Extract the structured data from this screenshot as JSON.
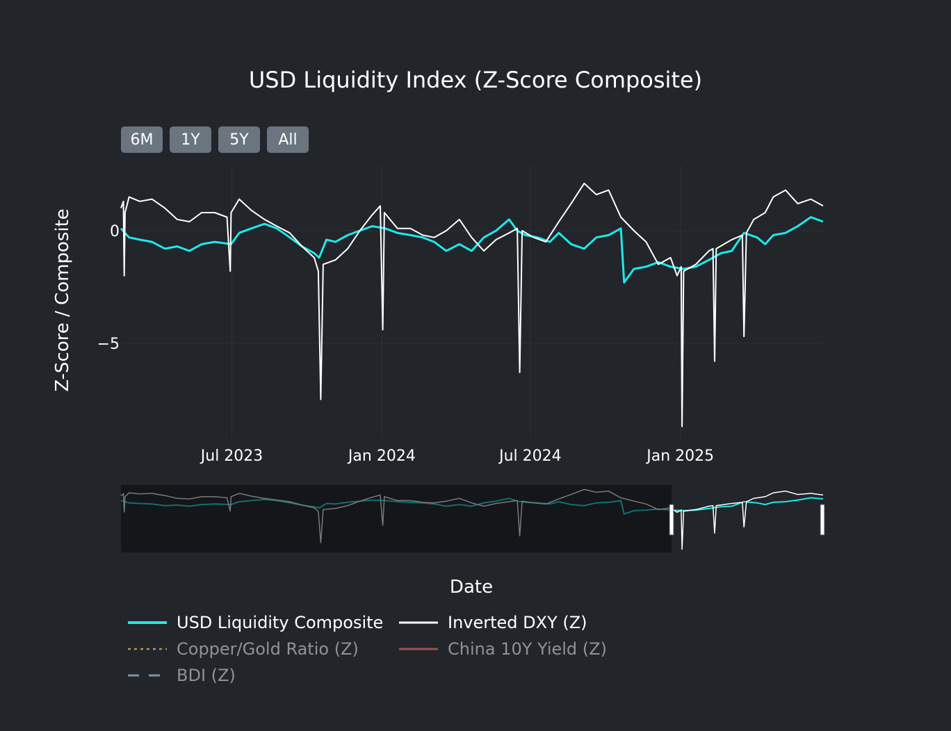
{
  "title": "USD Liquidity Index (Z-Score Composite)",
  "range_buttons": [
    "6M",
    "1Y",
    "5Y",
    "All"
  ],
  "yaxis": {
    "label": "Z-Score / Composite",
    "ticks": [
      0,
      -5
    ],
    "tick_labels": [
      "0",
      "−5"
    ]
  },
  "xaxis": {
    "label": "Date",
    "tick_labels": [
      "Jul 2023",
      "Jan 2024",
      "Jul 2024",
      "Jan 2025"
    ]
  },
  "legend": [
    {
      "name": "USD Liquidity Composite",
      "color": "#1de9ec",
      "dash": "solid",
      "active": true
    },
    {
      "name": "Inverted DXY (Z)",
      "color": "#ffffff",
      "dash": "solid",
      "active": true
    },
    {
      "name": "Copper/Gold Ratio (Z)",
      "color": "#b39c4d",
      "dash": "dot",
      "active": false
    },
    {
      "name": "China 10Y Yield (Z)",
      "color": "#a84e4e",
      "dash": "solid",
      "active": false
    },
    {
      "name": "BDI (Z)",
      "color": "#7f93a8",
      "dash": "dash",
      "active": false
    }
  ],
  "chart_data": {
    "type": "line",
    "title": "USD Liquidity Index (Z-Score Composite)",
    "xlabel": "Date",
    "ylabel": "Z-Score / Composite",
    "x_range": [
      "2023-02-15",
      "2025-06-25"
    ],
    "ylim": [
      -9.2,
      2.9
    ],
    "grid": true,
    "legend_position": "bottom",
    "series": [
      {
        "name": "USD Liquidity Composite",
        "color": "#1de9ec",
        "points": [
          [
            "2023-02-15",
            0.1
          ],
          [
            "2023-02-25",
            -0.3
          ],
          [
            "2023-03-10",
            -0.4
          ],
          [
            "2023-03-25",
            -0.5
          ],
          [
            "2023-04-10",
            -0.8
          ],
          [
            "2023-04-25",
            -0.7
          ],
          [
            "2023-05-10",
            -0.9
          ],
          [
            "2023-05-25",
            -0.6
          ],
          [
            "2023-06-10",
            -0.5
          ],
          [
            "2023-06-30",
            -0.6
          ],
          [
            "2023-07-10",
            -0.1
          ],
          [
            "2023-07-25",
            0.1
          ],
          [
            "2023-08-10",
            0.3
          ],
          [
            "2023-08-25",
            0.1
          ],
          [
            "2023-09-10",
            -0.3
          ],
          [
            "2023-09-25",
            -0.7
          ],
          [
            "2023-10-10",
            -1.0
          ],
          [
            "2023-10-16",
            -1.2
          ],
          [
            "2023-10-25",
            -0.4
          ],
          [
            "2023-11-05",
            -0.5
          ],
          [
            "2023-11-20",
            -0.2
          ],
          [
            "2023-12-05",
            0.0
          ],
          [
            "2023-12-20",
            0.2
          ],
          [
            "2024-01-05",
            0.1
          ],
          [
            "2024-01-20",
            -0.1
          ],
          [
            "2024-02-05",
            -0.2
          ],
          [
            "2024-02-20",
            -0.3
          ],
          [
            "2024-03-05",
            -0.5
          ],
          [
            "2024-03-20",
            -0.9
          ],
          [
            "2024-04-05",
            -0.6
          ],
          [
            "2024-04-20",
            -0.9
          ],
          [
            "2024-05-05",
            -0.3
          ],
          [
            "2024-05-20",
            0.0
          ],
          [
            "2024-06-05",
            0.5
          ],
          [
            "2024-06-15",
            0.0
          ],
          [
            "2024-06-25",
            -0.2
          ],
          [
            "2024-07-10",
            -0.3
          ],
          [
            "2024-07-25",
            -0.5
          ],
          [
            "2024-08-05",
            -0.1
          ],
          [
            "2024-08-20",
            -0.6
          ],
          [
            "2024-09-05",
            -0.8
          ],
          [
            "2024-09-20",
            -0.3
          ],
          [
            "2024-10-05",
            -0.2
          ],
          [
            "2024-10-20",
            0.1
          ],
          [
            "2024-10-24",
            -2.3
          ],
          [
            "2024-11-05",
            -1.7
          ],
          [
            "2024-11-20",
            -1.6
          ],
          [
            "2024-12-05",
            -1.4
          ],
          [
            "2024-12-20",
            -1.6
          ],
          [
            "2025-01-05",
            -1.7
          ],
          [
            "2025-01-20",
            -1.6
          ],
          [
            "2025-02-05",
            -1.3
          ],
          [
            "2025-02-20",
            -1.0
          ],
          [
            "2025-03-05",
            -0.9
          ],
          [
            "2025-03-20",
            -0.1
          ],
          [
            "2025-04-05",
            -0.3
          ],
          [
            "2025-04-15",
            -0.6
          ],
          [
            "2025-04-25",
            -0.2
          ],
          [
            "2025-05-10",
            -0.1
          ],
          [
            "2025-05-25",
            0.2
          ],
          [
            "2025-06-10",
            0.6
          ],
          [
            "2025-06-25",
            0.4
          ]
        ]
      },
      {
        "name": "Inverted DXY (Z)",
        "color": "#ffffff",
        "points": [
          [
            "2023-02-15",
            1.0
          ],
          [
            "2023-02-18",
            1.3
          ],
          [
            "2023-02-19",
            -2.0
          ],
          [
            "2023-02-20",
            0.8
          ],
          [
            "2023-02-25",
            1.5
          ],
          [
            "2023-03-10",
            1.3
          ],
          [
            "2023-03-25",
            1.4
          ],
          [
            "2023-04-10",
            1.0
          ],
          [
            "2023-04-25",
            0.5
          ],
          [
            "2023-05-10",
            0.4
          ],
          [
            "2023-05-25",
            0.8
          ],
          [
            "2023-06-10",
            0.8
          ],
          [
            "2023-06-25",
            0.6
          ],
          [
            "2023-06-29",
            -1.8
          ],
          [
            "2023-06-30",
            0.8
          ],
          [
            "2023-07-10",
            1.4
          ],
          [
            "2023-07-25",
            0.9
          ],
          [
            "2023-08-10",
            0.5
          ],
          [
            "2023-08-25",
            0.2
          ],
          [
            "2023-09-10",
            -0.1
          ],
          [
            "2023-09-25",
            -0.7
          ],
          [
            "2023-10-10",
            -1.2
          ],
          [
            "2023-10-15",
            -1.8
          ],
          [
            "2023-10-18",
            -7.5
          ],
          [
            "2023-10-21",
            -1.5
          ],
          [
            "2023-11-05",
            -1.3
          ],
          [
            "2023-11-20",
            -0.8
          ],
          [
            "2023-12-05",
            0.0
          ],
          [
            "2023-12-20",
            0.7
          ],
          [
            "2023-12-30",
            1.1
          ],
          [
            "2024-01-02",
            -4.4
          ],
          [
            "2024-01-04",
            0.8
          ],
          [
            "2024-01-20",
            0.1
          ],
          [
            "2024-02-05",
            0.1
          ],
          [
            "2024-02-20",
            -0.2
          ],
          [
            "2024-03-05",
            -0.3
          ],
          [
            "2024-03-20",
            0.0
          ],
          [
            "2024-04-05",
            0.5
          ],
          [
            "2024-04-20",
            -0.3
          ],
          [
            "2024-05-05",
            -0.9
          ],
          [
            "2024-05-20",
            -0.4
          ],
          [
            "2024-06-05",
            -0.1
          ],
          [
            "2024-06-15",
            0.1
          ],
          [
            "2024-06-18",
            -6.3
          ],
          [
            "2024-06-21",
            0.0
          ],
          [
            "2024-07-05",
            -0.3
          ],
          [
            "2024-07-20",
            -0.5
          ],
          [
            "2024-08-05",
            0.4
          ],
          [
            "2024-08-20",
            1.2
          ],
          [
            "2024-09-05",
            2.1
          ],
          [
            "2024-09-20",
            1.6
          ],
          [
            "2024-10-05",
            1.8
          ],
          [
            "2024-10-20",
            0.6
          ],
          [
            "2024-11-05",
            0.0
          ],
          [
            "2024-11-20",
            -0.5
          ],
          [
            "2024-12-05",
            -1.5
          ],
          [
            "2024-12-20",
            -1.2
          ],
          [
            "2024-12-28",
            -2.0
          ],
          [
            "2025-01-02",
            -1.6
          ],
          [
            "2025-01-03",
            -8.7
          ],
          [
            "2025-01-05",
            -1.8
          ],
          [
            "2025-01-20",
            -1.5
          ],
          [
            "2025-02-05",
            -0.9
          ],
          [
            "2025-02-10",
            -0.8
          ],
          [
            "2025-02-12",
            -5.8
          ],
          [
            "2025-02-14",
            -0.8
          ],
          [
            "2025-03-05",
            -0.4
          ],
          [
            "2025-03-18",
            -0.2
          ],
          [
            "2025-03-20",
            -4.7
          ],
          [
            "2025-03-23",
            -0.1
          ],
          [
            "2025-04-01",
            0.5
          ],
          [
            "2025-04-15",
            0.8
          ],
          [
            "2025-04-25",
            1.5
          ],
          [
            "2025-05-10",
            1.8
          ],
          [
            "2025-05-25",
            1.2
          ],
          [
            "2025-06-10",
            1.4
          ],
          [
            "2025-06-25",
            1.1
          ]
        ]
      }
    ]
  }
}
